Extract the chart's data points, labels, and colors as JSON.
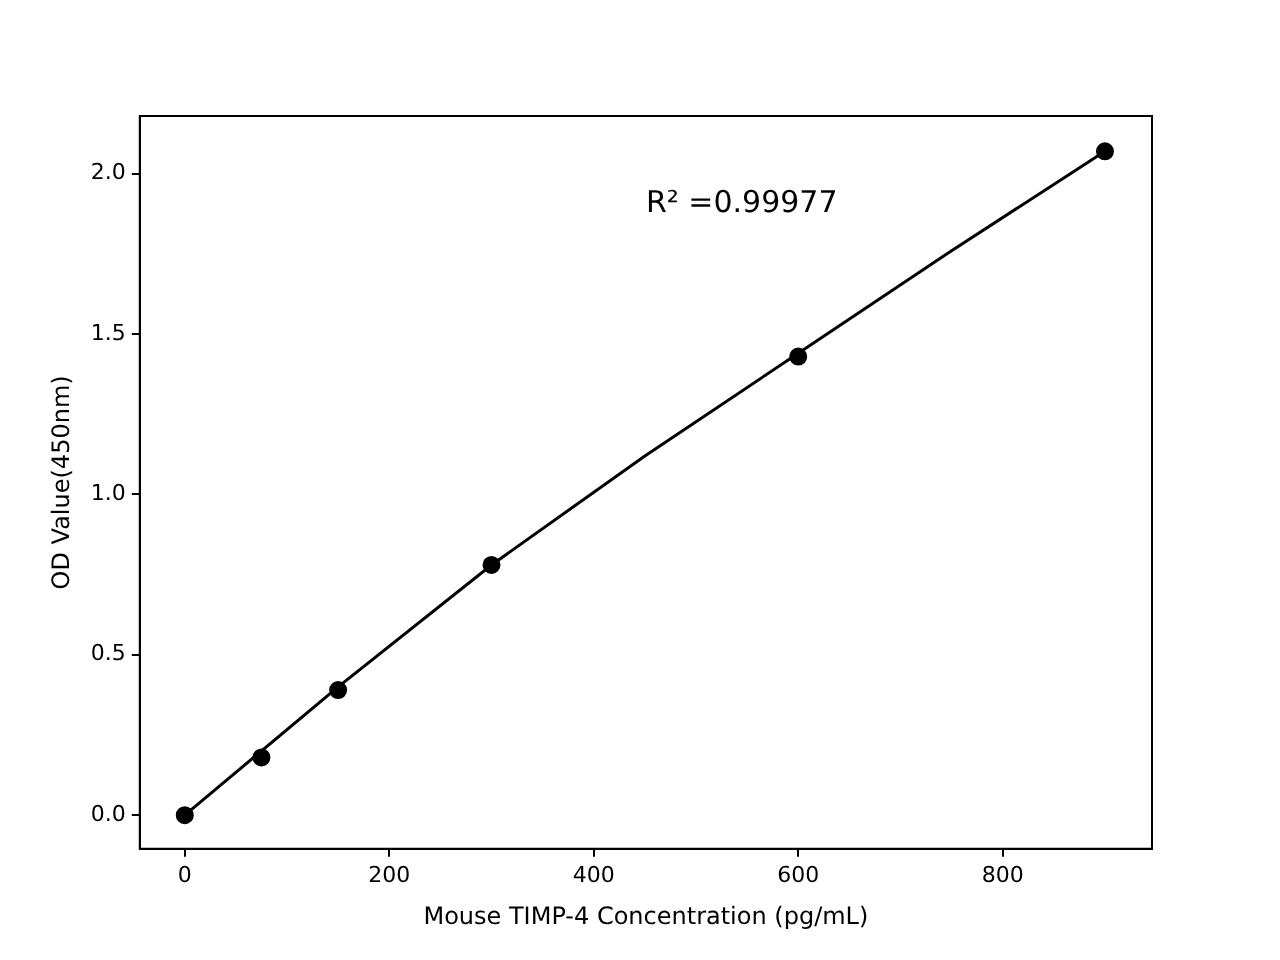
{
  "chart_data": {
    "type": "scatter",
    "xlabel": "Mouse TIMP-4 Concentration (pg/mL)",
    "ylabel": "OD Value(450nm)",
    "annotations": [
      "R² =0.99977"
    ],
    "series": [
      {
        "color": "#000000",
        "marker": "circle",
        "x": [
          0,
          75,
          150,
          300,
          600,
          900
        ],
        "values": [
          0,
          0.18,
          0.39,
          0.78,
          1.43,
          2.07
        ]
      },
      {
        "type": "line",
        "color": "#000000",
        "marker": "none",
        "x": [
          0,
          150,
          300,
          450,
          600,
          750,
          900
        ],
        "values": [
          0,
          0.4,
          0.78,
          1.12,
          1.44,
          1.76,
          2.07
        ]
      }
    ],
    "xlim": [
      -44,
      946
    ],
    "xticks": [
      0,
      200,
      400,
      600,
      800
    ],
    "ylim": [
      -0.105,
      2.18
    ],
    "yticks": [
      {
        "value": 0,
        "label": "0.0"
      },
      {
        "value": 0.5,
        "label": "0.5"
      },
      {
        "value": 1,
        "label": "1.0"
      },
      {
        "value": 1.5,
        "label": "1.5"
      },
      {
        "value": 2,
        "label": "2.0"
      }
    ],
    "grid": false,
    "legend": false
  }
}
